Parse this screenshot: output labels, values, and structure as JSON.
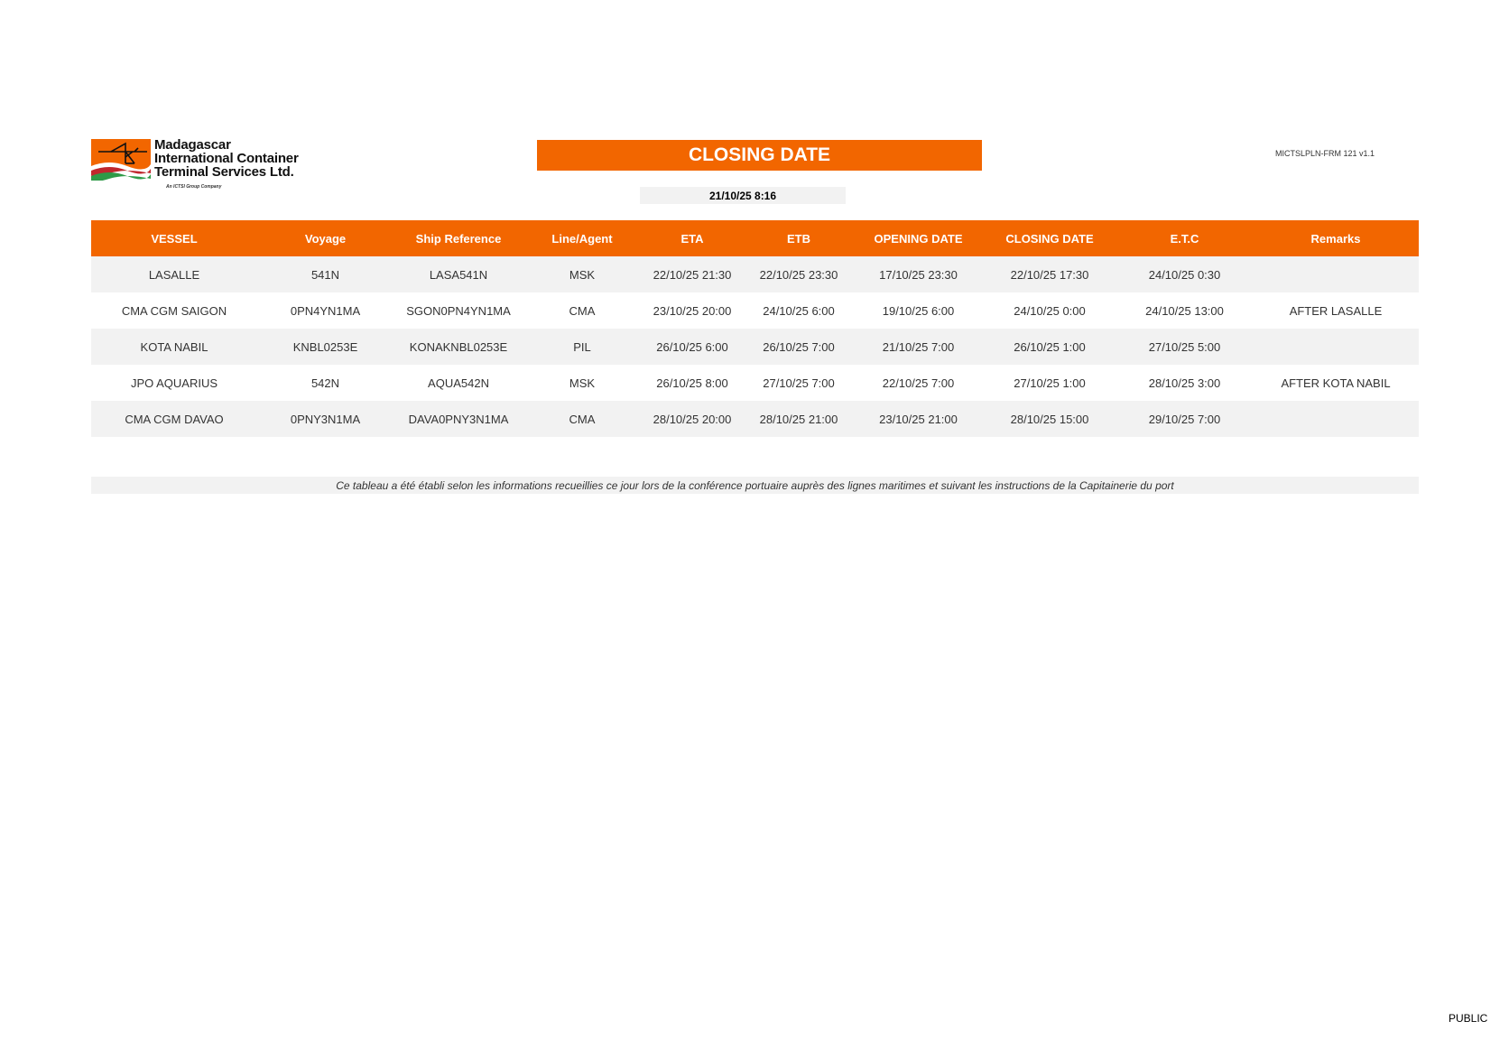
{
  "logo": {
    "lines": [
      "Madagascar",
      "International Container",
      "Terminal Services Ltd."
    ],
    "subtitle": "An ICTSI Group Company",
    "colors": {
      "orange": "#f26600",
      "red": "#c0272d",
      "green": "#2e9a47"
    }
  },
  "header": {
    "title": "CLOSING DATE",
    "date": "21/10/25 8:16",
    "form_code": "MICTSLPLN-FRM 121 v1.1"
  },
  "table": {
    "columns": [
      "VESSEL",
      "Voyage",
      "Ship Reference",
      "Line/Agent",
      "ETA",
      "ETB",
      "OPENING DATE",
      "CLOSING DATE",
      "E.T.C",
      "Remarks"
    ],
    "rows": [
      [
        "LASALLE",
        "541N",
        "LASA541N",
        "MSK",
        "22/10/25 21:30",
        "22/10/25 23:30",
        "17/10/25 23:30",
        "22/10/25 17:30",
        "24/10/25 0:30",
        ""
      ],
      [
        "CMA CGM SAIGON",
        "0PN4YN1MA",
        "SGON0PN4YN1MA",
        "CMA",
        "23/10/25 20:00",
        "24/10/25 6:00",
        "19/10/25 6:00",
        "24/10/25 0:00",
        "24/10/25 13:00",
        "AFTER LASALLE"
      ],
      [
        "KOTA NABIL",
        "KNBL0253E",
        "KONAKNBL0253E",
        "PIL",
        "26/10/25 6:00",
        "26/10/25 7:00",
        "21/10/25 7:00",
        "26/10/25 1:00",
        "27/10/25 5:00",
        ""
      ],
      [
        "JPO AQUARIUS",
        "542N",
        "AQUA542N",
        "MSK",
        "26/10/25 8:00",
        "27/10/25 7:00",
        "22/10/25 7:00",
        "27/10/25 1:00",
        "28/10/25 3:00",
        "AFTER KOTA NABIL"
      ],
      [
        "CMA CGM DAVAO",
        "0PNY3N1MA",
        "DAVA0PNY3N1MA",
        "CMA",
        "28/10/25 20:00",
        "28/10/25 21:00",
        "23/10/25 21:00",
        "28/10/25 15:00",
        "29/10/25 7:00",
        ""
      ]
    ]
  },
  "note": "Ce tableau a été établi selon les informations recueillies ce jour lors de la conférence portuaire auprès des lignes maritimes et suivant les instructions de la Capitainerie du port",
  "footer": {
    "classification": "PUBLIC"
  },
  "colors": {
    "accent": "#f26600",
    "row_shade": "#f2f2f2"
  }
}
